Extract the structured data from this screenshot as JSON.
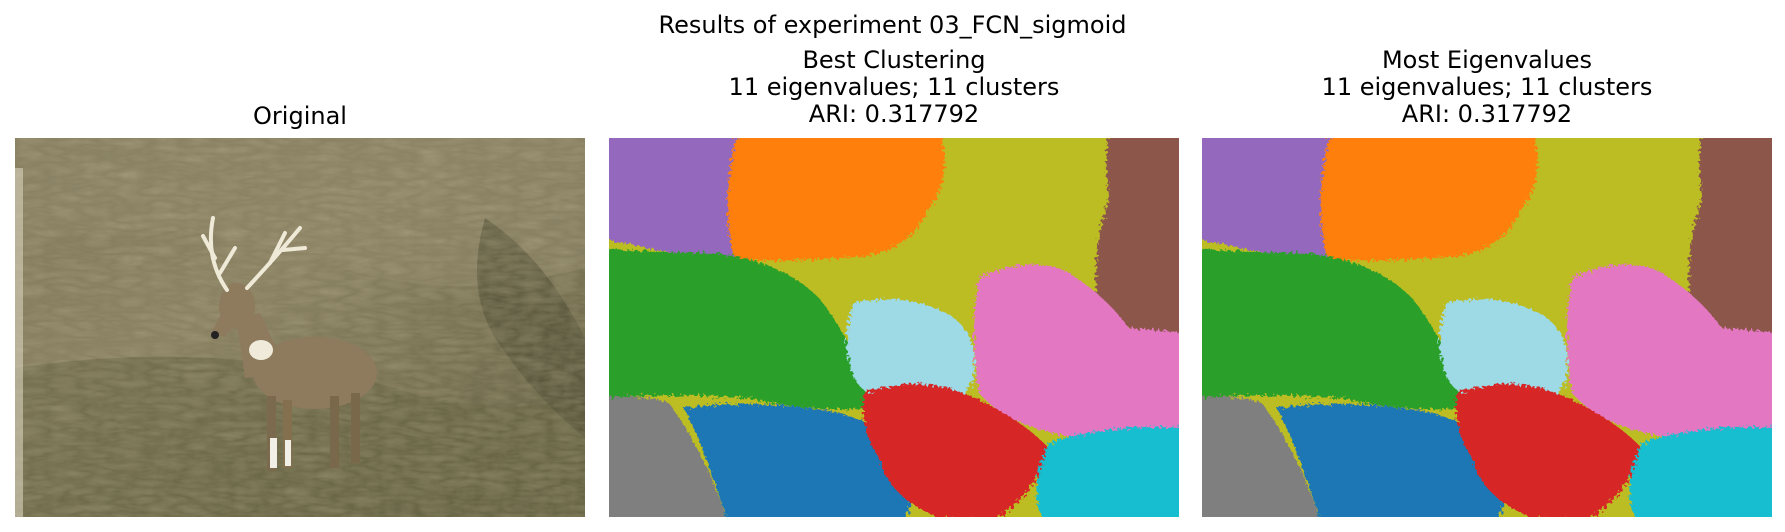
{
  "figure": {
    "suptitle": "Results of experiment 03_FCN_sigmoid"
  },
  "panels": [
    {
      "title_lines": [
        "Original"
      ]
    },
    {
      "title_lines": [
        "Best Clustering",
        "11 eigenvalues; 11 clusters",
        "ARI: 0.317792"
      ]
    },
    {
      "title_lines": [
        "Most Eigenvalues",
        "11 eigenvalues; 11 clusters",
        "ARI: 0.317792"
      ]
    }
  ],
  "cluster_colors": [
    "#9467bd",
    "#ff7f0e",
    "#bcbd22",
    "#8c564b",
    "#2ca02c",
    "#9edae5",
    "#e377c2",
    "#7f7f7f",
    "#1f77b4",
    "#d62728",
    "#17becf"
  ]
}
